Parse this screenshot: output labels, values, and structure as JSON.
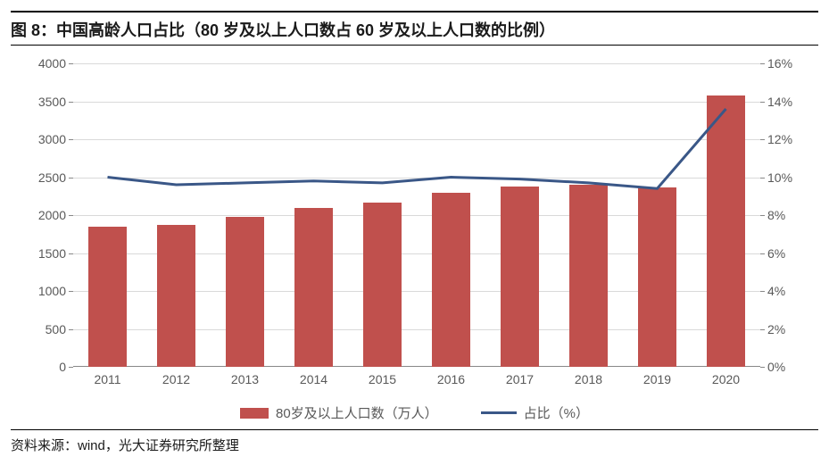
{
  "title": "图 8：中国高龄人口占比（80 岁及以上人口数占 60 岁及以上人口数的比例）",
  "source": "资料来源：wind，光大证券研究所整理",
  "chart": {
    "type": "bar+line",
    "background_color": "#ffffff",
    "grid_color": "#d9d9d9",
    "axis_color": "#888888",
    "tick_font_size": 14,
    "tick_color": "#595959",
    "categories": [
      "2011",
      "2012",
      "2013",
      "2014",
      "2015",
      "2016",
      "2017",
      "2018",
      "2019",
      "2020"
    ],
    "y_left": {
      "min": 0,
      "max": 4000,
      "step": 500,
      "ticks": [
        0,
        500,
        1000,
        1500,
        2000,
        2500,
        3000,
        3500,
        4000
      ]
    },
    "y_right": {
      "min": 0,
      "max": 16,
      "step": 2,
      "ticks": [
        "0%",
        "2%",
        "4%",
        "6%",
        "8%",
        "10%",
        "12%",
        "14%",
        "16%"
      ]
    },
    "bars": {
      "label": "80岁及以上人口数（万人）",
      "color": "#c0504d",
      "width_frac": 0.55,
      "values": [
        1850,
        1870,
        1980,
        2090,
        2170,
        2300,
        2380,
        2400,
        2370,
        3580
      ]
    },
    "line": {
      "label": "占比（%）",
      "color": "#3a5787",
      "width": 3,
      "values": [
        10.0,
        9.6,
        9.7,
        9.8,
        9.7,
        10.0,
        9.9,
        9.7,
        9.4,
        13.6
      ]
    }
  }
}
